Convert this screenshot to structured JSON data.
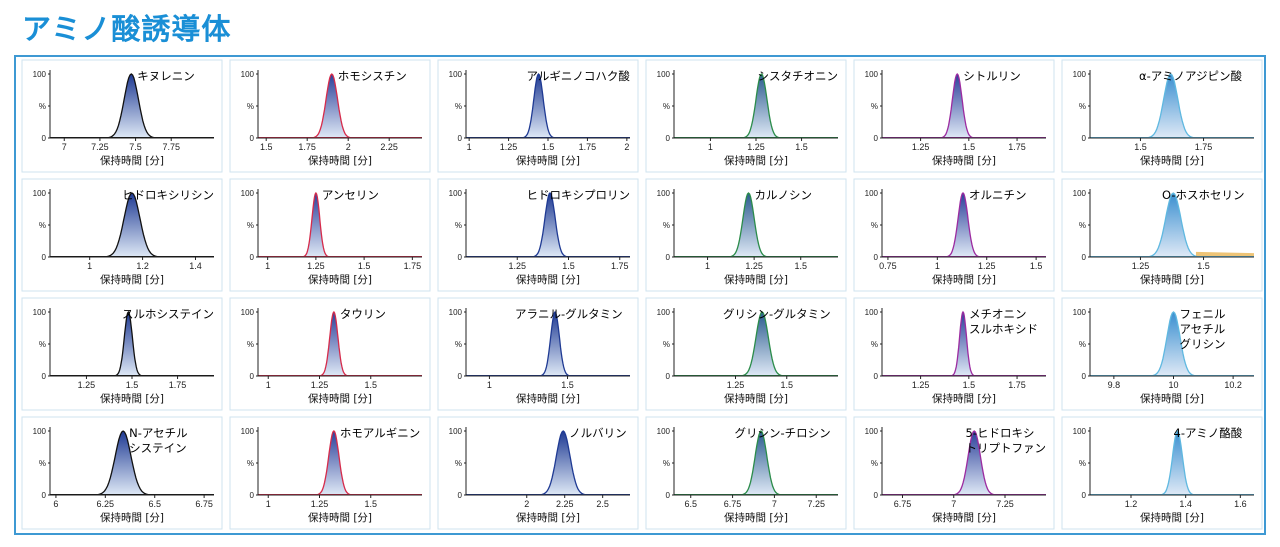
{
  "page_title": "アミノ酸誘導体",
  "chart_data": [
    {
      "type": "line",
      "label": [
        "キヌレニン"
      ],
      "xlim": [
        6.9,
        8.05
      ],
      "ticks": [
        7,
        7.25,
        7.5,
        7.75
      ],
      "tick_labels": [
        "7",
        "7.25",
        "7.5",
        "7.75"
      ],
      "peak": 7.47,
      "width": 0.05,
      "yticks": [
        "100",
        "%",
        "0"
      ],
      "xlabel": "保持時間 [分]",
      "fill": "#1f3a93",
      "edge": "#111111"
    },
    {
      "type": "line",
      "label": [
        "ホモシスチン"
      ],
      "xlim": [
        1.45,
        2.45
      ],
      "ticks": [
        1.5,
        1.75,
        2,
        2.25
      ],
      "tick_labels": [
        "1.5",
        "1.75",
        "2",
        "2.25"
      ],
      "peak": 1.9,
      "width": 0.035,
      "yticks": [
        "100",
        "%",
        "0"
      ],
      "xlabel": "保持時間 [分]",
      "fill": "#2b3f99",
      "edge": "#d62b4b"
    },
    {
      "type": "line",
      "label": [
        "アルギニノコハク酸"
      ],
      "xlim": [
        0.98,
        2.02
      ],
      "ticks": [
        1,
        1.25,
        1.5,
        1.75,
        2
      ],
      "tick_labels": [
        "1",
        "1.25",
        "1.5",
        "1.75",
        "2"
      ],
      "peak": 1.44,
      "width": 0.03,
      "yticks": [
        "100",
        "%",
        "0"
      ],
      "xlabel": "保持時間 [分]",
      "fill": "#1f3a93",
      "edge": "#1f3a93"
    },
    {
      "type": "line",
      "label": [
        "シスタチオニン"
      ],
      "xlim": [
        0.8,
        1.7
      ],
      "ticks": [
        1,
        1.25,
        1.5
      ],
      "tick_labels": [
        "1",
        "1.25",
        "1.5"
      ],
      "peak": 1.28,
      "width": 0.03,
      "yticks": [
        "100",
        "%",
        "0"
      ],
      "xlabel": "保持時間 [分]",
      "fill": "#2a5b8e",
      "edge": "#2b8c4a"
    },
    {
      "type": "line",
      "label": [
        "シトルリン"
      ],
      "xlim": [
        1.05,
        1.9
      ],
      "ticks": [
        1.25,
        1.5,
        1.75
      ],
      "tick_labels": [
        "1.25",
        "1.5",
        "1.75"
      ],
      "peak": 1.44,
      "width": 0.025,
      "yticks": [
        "100",
        "%",
        "0"
      ],
      "xlabel": "保持時間 [分]",
      "fill": "#2b3f99",
      "edge": "#9c2ba0"
    },
    {
      "type": "line",
      "label": [
        "α-アミノアジピン酸"
      ],
      "xlim": [
        1.3,
        1.95
      ],
      "ticks": [
        1.5,
        1.75
      ],
      "tick_labels": [
        "1.5",
        "1.75"
      ],
      "peak": 1.62,
      "width": 0.028,
      "yticks": [
        "100",
        "%",
        "0"
      ],
      "xlabel": "保持時間 [分]",
      "fill": "#3a8fd0",
      "edge": "#5fb8e0"
    },
    {
      "type": "line",
      "label": [
        "ヒドロキシリシン"
      ],
      "xlim": [
        0.85,
        1.47
      ],
      "ticks": [
        1,
        1.2,
        1.4
      ],
      "tick_labels": [
        "1",
        "1.2",
        "1.4"
      ],
      "peak": 1.16,
      "width": 0.03,
      "yticks": [
        "100",
        "%",
        "0"
      ],
      "xlabel": "保持時間 [分]",
      "fill": "#1f3a93",
      "edge": "#111111"
    },
    {
      "type": "line",
      "label": [
        "アンセリン"
      ],
      "xlim": [
        0.95,
        1.8
      ],
      "ticks": [
        1,
        1.25,
        1.5,
        1.75
      ],
      "tick_labels": [
        "1",
        "1.25",
        "1.5",
        "1.75"
      ],
      "peak": 1.25,
      "width": 0.02,
      "yticks": [
        "100",
        "%",
        "0"
      ],
      "xlabel": "保持時間 [分]",
      "fill": "#2b3f99",
      "edge": "#d62b4b"
    },
    {
      "type": "line",
      "label": [
        "ヒドロキシプロリン"
      ],
      "xlim": [
        1.0,
        1.8
      ],
      "ticks": [
        1.25,
        1.5,
        1.75
      ],
      "tick_labels": [
        "1.25",
        "1.5",
        "1.75"
      ],
      "peak": 1.41,
      "width": 0.025,
      "yticks": [
        "100",
        "%",
        "0"
      ],
      "xlabel": "保持時間 [分]",
      "fill": "#1f3a93",
      "edge": "#1f3a93"
    },
    {
      "type": "line",
      "label": [
        "カルノシン"
      ],
      "xlim": [
        0.82,
        1.7
      ],
      "ticks": [
        1,
        1.25,
        1.5
      ],
      "tick_labels": [
        "1",
        "1.25",
        "1.5"
      ],
      "peak": 1.22,
      "width": 0.03,
      "yticks": [
        "100",
        "%",
        "0"
      ],
      "xlabel": "保持時間 [分]",
      "fill": "#2a5b8e",
      "edge": "#2b8c4a"
    },
    {
      "type": "line",
      "label": [
        "オルニチン"
      ],
      "xlim": [
        0.72,
        1.55
      ],
      "ticks": [
        0.75,
        1,
        1.25,
        1.5
      ],
      "tick_labels": [
        "0.75",
        "1",
        "1.25",
        "1.5"
      ],
      "peak": 1.13,
      "width": 0.025,
      "yticks": [
        "100",
        "%",
        "0"
      ],
      "xlabel": "保持時間 [分]",
      "fill": "#2b3f99",
      "edge": "#9c2ba0"
    },
    {
      "type": "line",
      "label": [
        "O-ホスホセリン"
      ],
      "xlim": [
        1.05,
        1.7
      ],
      "ticks": [
        1.25,
        1.5
      ],
      "tick_labels": [
        "1.25",
        "1.5"
      ],
      "peak": 1.38,
      "width": 0.03,
      "yticks": [
        "100",
        "%",
        "0"
      ],
      "xlabel": "保持時間 [分]",
      "fill": "#3a8fd0",
      "edge": "#5fb8e0",
      "tail": "#e8b04a"
    },
    {
      "type": "line",
      "label": [
        "スルホシステイン"
      ],
      "xlim": [
        1.05,
        1.95
      ],
      "ticks": [
        1.25,
        1.5,
        1.75
      ],
      "tick_labels": [
        "1.25",
        "1.5",
        "1.75"
      ],
      "peak": 1.48,
      "width": 0.022,
      "yticks": [
        "100",
        "%",
        "0"
      ],
      "xlabel": "保持時間 [分]",
      "fill": "#1f3a93",
      "edge": "#111111"
    },
    {
      "type": "line",
      "label": [
        "タウリン"
      ],
      "xlim": [
        0.95,
        1.75
      ],
      "ticks": [
        1,
        1.25,
        1.5
      ],
      "tick_labels": [
        "1",
        "1.25",
        "1.5"
      ],
      "peak": 1.32,
      "width": 0.02,
      "yticks": [
        "100",
        "%",
        "0"
      ],
      "xlabel": "保持時間 [分]",
      "fill": "#2b3f99",
      "edge": "#d62b4b"
    },
    {
      "type": "line",
      "label": [
        "アラニル-グルタミン"
      ],
      "xlim": [
        0.85,
        1.9
      ],
      "ticks": [
        1,
        1.5
      ],
      "tick_labels": [
        "1",
        "1.5"
      ],
      "peak": 1.42,
      "width": 0.028,
      "yticks": [
        "100",
        "%",
        "0"
      ],
      "xlabel": "保持時間 [分]",
      "fill": "#1f3a93",
      "edge": "#1f3a93"
    },
    {
      "type": "line",
      "label": [
        "グリシン-グルタミン"
      ],
      "xlim": [
        0.95,
        1.75
      ],
      "ticks": [
        1.25,
        1.5
      ],
      "tick_labels": [
        "1.25",
        "1.5"
      ],
      "peak": 1.38,
      "width": 0.03,
      "yticks": [
        "100",
        "%",
        "0"
      ],
      "xlabel": "保持時間 [分]",
      "fill": "#2a5b8e",
      "edge": "#2b8c4a"
    },
    {
      "type": "line",
      "label": [
        "メチオニン",
        "スルホキシド"
      ],
      "xlim": [
        1.05,
        1.9
      ],
      "ticks": [
        1.25,
        1.5,
        1.75
      ],
      "tick_labels": [
        "1.25",
        "1.5",
        "1.75"
      ],
      "peak": 1.47,
      "width": 0.018,
      "yticks": [
        "100",
        "%",
        "0"
      ],
      "xlabel": "保持時間 [分]",
      "fill": "#2b3f99",
      "edge": "#9c2ba0"
    },
    {
      "type": "line",
      "label": [
        "フェニル",
        "アセチル",
        "グリシン"
      ],
      "xlim": [
        9.72,
        10.27
      ],
      "ticks": [
        9.8,
        10,
        10.2
      ],
      "tick_labels": [
        "9.8",
        "10",
        "10.2"
      ],
      "peak": 10.0,
      "width": 0.022,
      "yticks": [
        "100",
        "%",
        "0"
      ],
      "xlabel": "保持時間 [分]",
      "fill": "#3a8fd0",
      "edge": "#5fb8e0"
    },
    {
      "type": "line",
      "label": [
        "N-アセチル",
        "システイン"
      ],
      "xlim": [
        5.97,
        6.8
      ],
      "ticks": [
        6,
        6.25,
        6.5,
        6.75
      ],
      "tick_labels": [
        "6",
        "6.25",
        "6.5",
        "6.75"
      ],
      "peak": 6.34,
      "width": 0.04,
      "yticks": [
        "100",
        "%",
        "0"
      ],
      "xlabel": "保持時間 [分]",
      "fill": "#1f3a93",
      "edge": "#111111"
    },
    {
      "type": "line",
      "label": [
        "ホモアルギニン"
      ],
      "xlim": [
        0.95,
        1.75
      ],
      "ticks": [
        1,
        1.25,
        1.5
      ],
      "tick_labels": [
        "1",
        "1.25",
        "1.5"
      ],
      "peak": 1.32,
      "width": 0.025,
      "yticks": [
        "100",
        "%",
        "0"
      ],
      "xlabel": "保持時間 [分]",
      "fill": "#2b3f99",
      "edge": "#d62b4b"
    },
    {
      "type": "line",
      "label": [
        "ノルバリン"
      ],
      "xlim": [
        1.6,
        2.68
      ],
      "ticks": [
        2,
        2.25,
        2.5
      ],
      "tick_labels": [
        "2",
        "2.25",
        "2.5"
      ],
      "peak": 2.24,
      "width": 0.045,
      "yticks": [
        "100",
        "%",
        "0"
      ],
      "xlabel": "保持時間 [分]",
      "fill": "#1f3a93",
      "edge": "#1f3a93"
    },
    {
      "type": "line",
      "label": [
        "グリシン-チロシン"
      ],
      "xlim": [
        6.4,
        7.38
      ],
      "ticks": [
        6.5,
        6.75,
        7,
        7.25
      ],
      "tick_labels": [
        "6.5",
        "6.75",
        "7",
        "7.25"
      ],
      "peak": 6.92,
      "width": 0.035,
      "yticks": [
        "100",
        "%",
        "0"
      ],
      "xlabel": "保持時間 [分]",
      "fill": "#2a5b8e",
      "edge": "#2b8c4a"
    },
    {
      "type": "line",
      "label": [
        "5-ヒドロキシ",
        "トリプトファン"
      ],
      "xlim": [
        6.65,
        7.45
      ],
      "ticks": [
        6.75,
        7,
        7.25
      ],
      "tick_labels": [
        "6.75",
        "7",
        "7.25"
      ],
      "peak": 7.1,
      "width": 0.03,
      "yticks": [
        "100",
        "%",
        "0"
      ],
      "xlabel": "保持時間 [分]",
      "fill": "#2b3f99",
      "edge": "#9c2ba0"
    },
    {
      "type": "line",
      "label": [
        "4-アミノ酪酸"
      ],
      "xlim": [
        1.05,
        1.65
      ],
      "ticks": [
        1.2,
        1.4,
        1.6
      ],
      "tick_labels": [
        "1.2",
        "1.4",
        "1.6"
      ],
      "peak": 1.37,
      "width": 0.018,
      "yticks": [
        "100",
        "%",
        "0"
      ],
      "xlabel": "保持時間 [分]",
      "fill": "#3a8fd0",
      "edge": "#5fb8e0"
    }
  ]
}
